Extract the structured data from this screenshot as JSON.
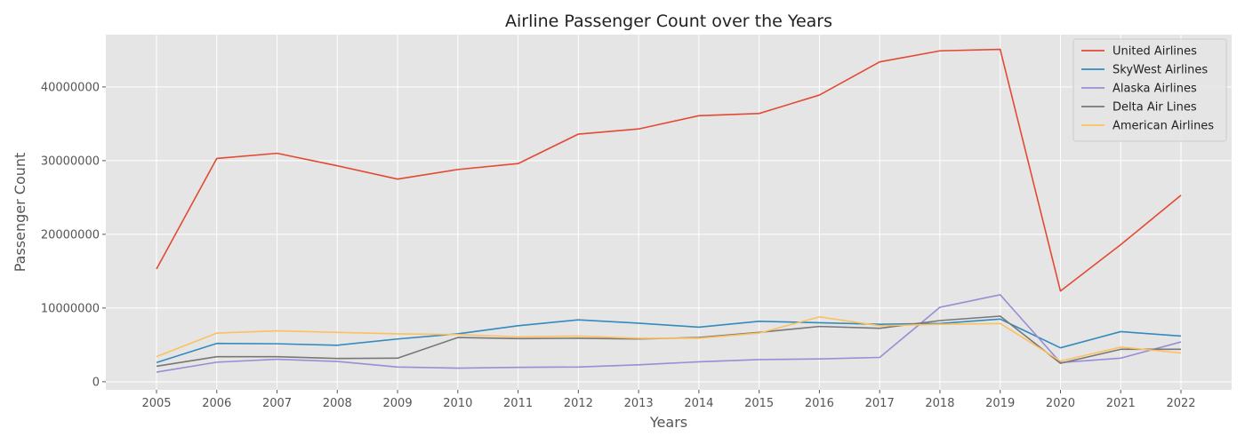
{
  "chart_data": {
    "type": "line",
    "title": "Airline Passenger Count over the Years",
    "xlabel": "Years",
    "ylabel": "Passenger Count",
    "x": [
      2005,
      2006,
      2007,
      2008,
      2009,
      2010,
      2011,
      2012,
      2013,
      2014,
      2015,
      2016,
      2017,
      2018,
      2019,
      2020,
      2021,
      2022
    ],
    "ylim": [
      -1100000,
      47100000
    ],
    "yticks": [
      0,
      10000000,
      20000000,
      30000000,
      40000000
    ],
    "ytick_labels": [
      "0",
      "10000000",
      "20000000",
      "30000000",
      "40000000"
    ],
    "grid": true,
    "legend_position": "top-right",
    "series": [
      {
        "name": "United Airlines",
        "color": "#E24A33",
        "values": [
          15300000,
          30300000,
          31000000,
          29300000,
          27500000,
          28800000,
          29600000,
          33600000,
          34300000,
          36100000,
          36400000,
          38900000,
          43400000,
          44900000,
          45100000,
          12300000,
          18600000,
          25300000
        ]
      },
      {
        "name": "SkyWest Airlines",
        "color": "#348ABD",
        "values": [
          2600000,
          5200000,
          5150000,
          4950000,
          5800000,
          6500000,
          7600000,
          8400000,
          7950000,
          7400000,
          8200000,
          8000000,
          7800000,
          7900000,
          8500000,
          4600000,
          6800000,
          6200000
        ]
      },
      {
        "name": "Alaska Airlines",
        "color": "#988ED5",
        "values": [
          1300000,
          2650000,
          3050000,
          2750000,
          2000000,
          1850000,
          1950000,
          2000000,
          2300000,
          2700000,
          3000000,
          3100000,
          3300000,
          10100000,
          11800000,
          2600000,
          3200000,
          5400000
        ]
      },
      {
        "name": "Delta Air Lines",
        "color": "#777777",
        "values": [
          2100000,
          3400000,
          3400000,
          3150000,
          3200000,
          6000000,
          5850000,
          5900000,
          5800000,
          6000000,
          6700000,
          7500000,
          7250000,
          8300000,
          8900000,
          2500000,
          4400000,
          4400000
        ]
      },
      {
        "name": "American Airlines",
        "color": "#FBC15E",
        "values": [
          3400000,
          6600000,
          6900000,
          6700000,
          6500000,
          6400000,
          6100000,
          6200000,
          5900000,
          5900000,
          6600000,
          8800000,
          7600000,
          7800000,
          7900000,
          2800000,
          4700000,
          3900000
        ]
      }
    ]
  }
}
